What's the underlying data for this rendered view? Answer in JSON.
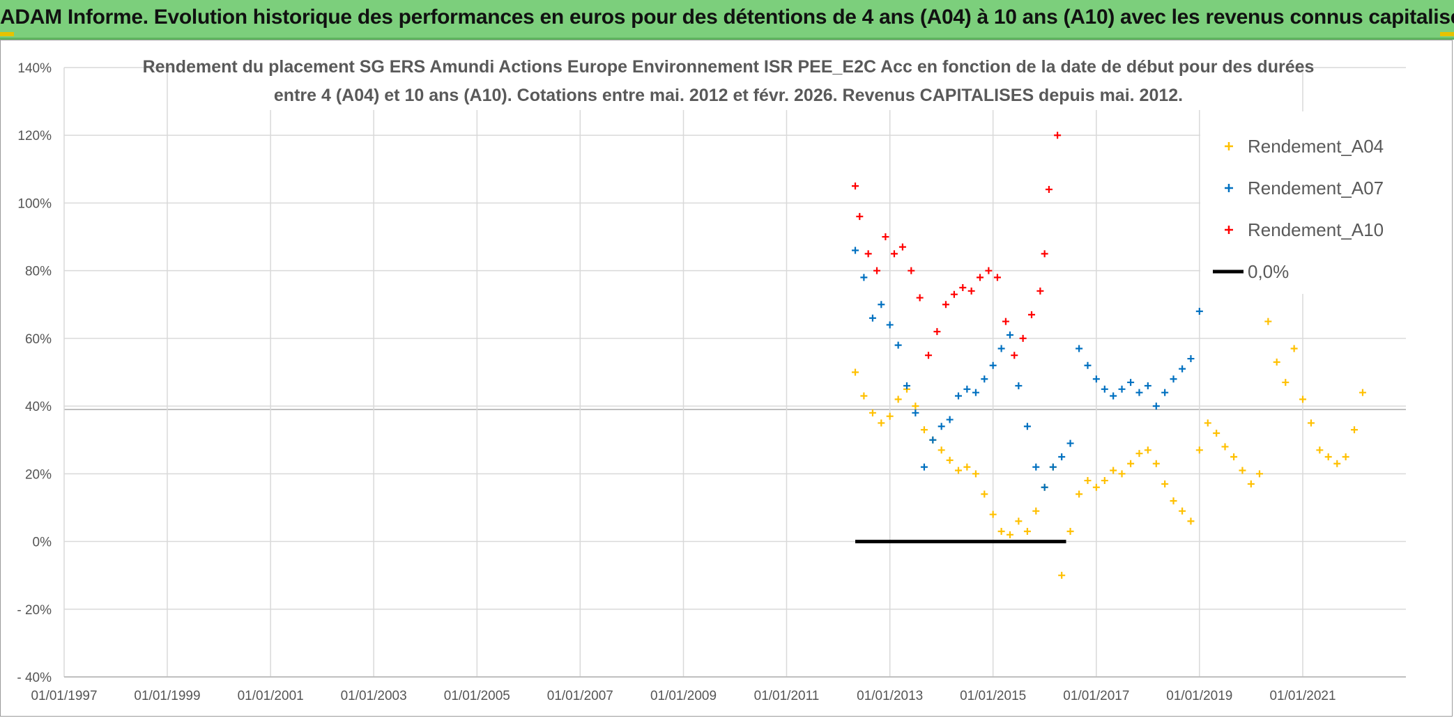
{
  "banner": {
    "title": "ADAM Informe. Evolution historique des performances en euros pour des détentions de 4 ans (A04) à 10 ans (A10) avec les revenus connus capitalisés"
  },
  "chart_data": {
    "type": "scatter",
    "title_lines": [
      "Rendement du placement SG ERS Amundi Actions Europe Environnement ISR PEE_E2C Acc en fonction de la date de début pour des durées",
      "entre 4 (A04) et 10 ans (A10). Cotations entre mai. 2012 et févr. 2026. Revenus CAPITALISES depuis mai. 2012."
    ],
    "x_tick_labels": [
      "01/01/1997",
      "01/01/1999",
      "01/01/2001",
      "01/01/2003",
      "01/01/2005",
      "01/01/2007",
      "01/01/2009",
      "01/01/2011",
      "01/01/2013",
      "01/01/2015",
      "01/01/2017",
      "01/01/2019",
      "01/01/2021"
    ],
    "xlim": [
      "1997-01-01",
      "2023-01-01"
    ],
    "y_tick_labels": [
      "140%",
      "120%",
      "100%",
      "80%",
      "60%",
      "40%",
      "20%",
      "0%",
      "- 20%",
      "- 40%"
    ],
    "ylim": [
      -40,
      140
    ],
    "grid": true,
    "legend_position": "top-right",
    "series": [
      {
        "name": "Rendement_A04",
        "color": "#ffc000",
        "marker": "+",
        "points": [
          [
            "2012-05",
            50
          ],
          [
            "2012-07",
            43
          ],
          [
            "2012-09",
            38
          ],
          [
            "2012-11",
            35
          ],
          [
            "2013-01",
            37
          ],
          [
            "2013-03",
            42
          ],
          [
            "2013-05",
            45
          ],
          [
            "2013-07",
            40
          ],
          [
            "2013-09",
            33
          ],
          [
            "2013-11",
            30
          ],
          [
            "2014-01",
            27
          ],
          [
            "2014-03",
            24
          ],
          [
            "2014-05",
            21
          ],
          [
            "2014-07",
            22
          ],
          [
            "2014-09",
            20
          ],
          [
            "2014-11",
            14
          ],
          [
            "2015-01",
            8
          ],
          [
            "2015-03",
            3
          ],
          [
            "2015-05",
            2
          ],
          [
            "2015-07",
            6
          ],
          [
            "2015-09",
            3
          ],
          [
            "2015-11",
            9
          ],
          [
            "2016-01",
            16
          ],
          [
            "2016-03",
            22
          ],
          [
            "2016-05",
            -10
          ],
          [
            "2016-07",
            3
          ],
          [
            "2016-09",
            14
          ],
          [
            "2016-11",
            18
          ],
          [
            "2017-01",
            16
          ],
          [
            "2017-03",
            18
          ],
          [
            "2017-05",
            21
          ],
          [
            "2017-07",
            20
          ],
          [
            "2017-09",
            23
          ],
          [
            "2017-11",
            26
          ],
          [
            "2018-01",
            27
          ],
          [
            "2018-03",
            23
          ],
          [
            "2018-05",
            17
          ],
          [
            "2018-07",
            12
          ],
          [
            "2018-09",
            9
          ],
          [
            "2018-11",
            6
          ],
          [
            "2019-01",
            27
          ],
          [
            "2019-03",
            35
          ],
          [
            "2019-05",
            32
          ],
          [
            "2019-07",
            28
          ],
          [
            "2019-09",
            25
          ],
          [
            "2019-11",
            21
          ],
          [
            "2020-01",
            17
          ],
          [
            "2020-03",
            20
          ],
          [
            "2020-05",
            65
          ],
          [
            "2020-07",
            53
          ],
          [
            "2020-09",
            47
          ],
          [
            "2020-11",
            57
          ],
          [
            "2021-01",
            42
          ],
          [
            "2021-03",
            35
          ],
          [
            "2021-05",
            27
          ],
          [
            "2021-07",
            25
          ],
          [
            "2021-09",
            23
          ],
          [
            "2021-11",
            25
          ],
          [
            "2022-01",
            33
          ],
          [
            "2022-03",
            44
          ]
        ]
      },
      {
        "name": "Rendement_A07",
        "color": "#0070c0",
        "marker": "+",
        "points": [
          [
            "2012-05",
            86
          ],
          [
            "2012-07",
            78
          ],
          [
            "2012-09",
            66
          ],
          [
            "2012-11",
            70
          ],
          [
            "2013-01",
            64
          ],
          [
            "2013-03",
            58
          ],
          [
            "2013-05",
            46
          ],
          [
            "2013-07",
            38
          ],
          [
            "2013-09",
            22
          ],
          [
            "2013-11",
            30
          ],
          [
            "2014-01",
            34
          ],
          [
            "2014-03",
            36
          ],
          [
            "2014-05",
            43
          ],
          [
            "2014-07",
            45
          ],
          [
            "2014-09",
            44
          ],
          [
            "2014-11",
            48
          ],
          [
            "2015-01",
            52
          ],
          [
            "2015-03",
            57
          ],
          [
            "2015-05",
            61
          ],
          [
            "2015-07",
            46
          ],
          [
            "2015-09",
            34
          ],
          [
            "2015-11",
            22
          ],
          [
            "2016-01",
            16
          ],
          [
            "2016-03",
            22
          ],
          [
            "2016-05",
            25
          ],
          [
            "2016-07",
            29
          ],
          [
            "2016-09",
            57
          ],
          [
            "2016-11",
            52
          ],
          [
            "2017-01",
            48
          ],
          [
            "2017-03",
            45
          ],
          [
            "2017-05",
            43
          ],
          [
            "2017-07",
            45
          ],
          [
            "2017-09",
            47
          ],
          [
            "2017-11",
            44
          ],
          [
            "2018-01",
            46
          ],
          [
            "2018-03",
            40
          ],
          [
            "2018-05",
            44
          ],
          [
            "2018-07",
            48
          ],
          [
            "2018-09",
            51
          ],
          [
            "2018-11",
            54
          ],
          [
            "2019-01",
            68
          ]
        ]
      },
      {
        "name": "Rendement_A10",
        "color": "#ff0000",
        "marker": "+",
        "points": [
          [
            "2012-05",
            105
          ],
          [
            "2012-06",
            96
          ],
          [
            "2012-08",
            85
          ],
          [
            "2012-10",
            80
          ],
          [
            "2012-12",
            90
          ],
          [
            "2013-02",
            85
          ],
          [
            "2013-04",
            87
          ],
          [
            "2013-06",
            80
          ],
          [
            "2013-08",
            72
          ],
          [
            "2013-10",
            55
          ],
          [
            "2013-12",
            62
          ],
          [
            "2014-02",
            70
          ],
          [
            "2014-04",
            73
          ],
          [
            "2014-06",
            75
          ],
          [
            "2014-08",
            74
          ],
          [
            "2014-10",
            78
          ],
          [
            "2014-12",
            80
          ],
          [
            "2015-02",
            78
          ],
          [
            "2015-04",
            65
          ],
          [
            "2015-06",
            55
          ],
          [
            "2015-08",
            60
          ],
          [
            "2015-10",
            67
          ],
          [
            "2015-12",
            74
          ],
          [
            "2016-01",
            85
          ],
          [
            "2016-02",
            104
          ],
          [
            "2016-04",
            120
          ]
        ]
      },
      {
        "name": "0,0%",
        "color": "#000000",
        "marker": "line",
        "points": [
          [
            "2012-05",
            0
          ],
          [
            "2016-06",
            0
          ]
        ]
      }
    ]
  }
}
